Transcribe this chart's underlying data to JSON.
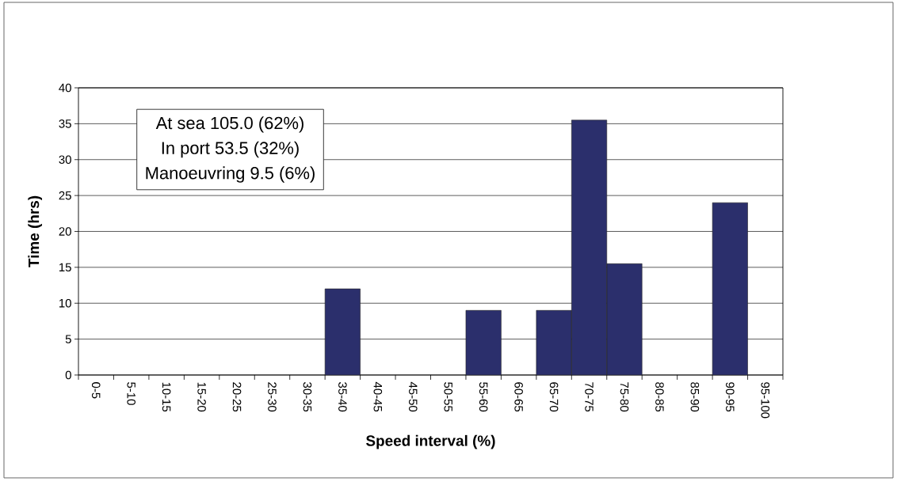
{
  "chart_data": {
    "type": "bar",
    "xlabel": "Speed interval (%)",
    "ylabel": "Time (hrs)",
    "categories": [
      "0-5",
      "5-10",
      "10-15",
      "15-20",
      "20-25",
      "25-30",
      "30-35",
      "35-40",
      "40-45",
      "45-50",
      "50-55",
      "55-60",
      "60-65",
      "65-70",
      "70-75",
      "75-80",
      "80-85",
      "85-90",
      "90-95",
      "95-100"
    ],
    "values": [
      0,
      0,
      0,
      0,
      0,
      0,
      0,
      12,
      0,
      0,
      0,
      9,
      0,
      9,
      35.5,
      15.5,
      0,
      0,
      24,
      0
    ],
    "color": "#2b2f6c",
    "ylim": [
      0,
      40
    ],
    "yticks": [
      0,
      5,
      10,
      15,
      20,
      25,
      30,
      35,
      40
    ],
    "grid": "y",
    "annotations": [
      "At sea 105.0 (62%)",
      "In port 53.5 (32%)",
      "Manoeuvring 9.5 (6%)"
    ]
  }
}
